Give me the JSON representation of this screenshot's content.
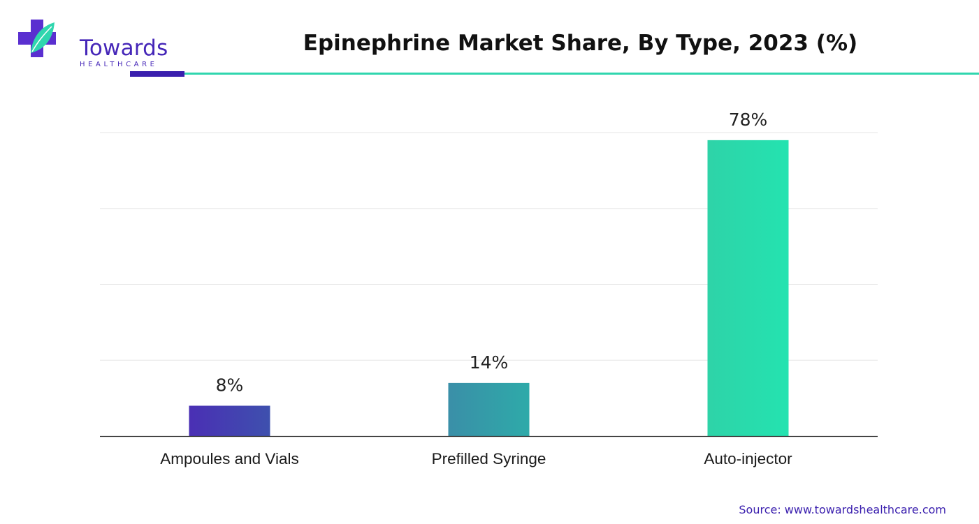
{
  "logo": {
    "name": "Towards",
    "subtitle": "HEALTHCARE",
    "icon": "medical-cross-leaf-icon"
  },
  "colors": {
    "brand_purple": "#4526b8",
    "brand_teal": "#2fd6ae",
    "grid": "#e6e6e6",
    "axis": "#333333"
  },
  "chart_data": {
    "type": "bar",
    "title": "Epinephrine Market Share, By Type, 2023 (%)",
    "xlabel": "",
    "ylabel": "",
    "categories": [
      "Ampoules and Vials",
      "Prefilled Syringe",
      "Auto-injector"
    ],
    "values": [
      8,
      14,
      78
    ],
    "data_labels": [
      "8%",
      "14%",
      "78%"
    ],
    "unit": "%",
    "ylim": [
      0,
      80
    ],
    "grid": true,
    "legend": "none",
    "bar_gradients": [
      [
        "#4a2fb4",
        "#3e50ae"
      ],
      [
        "#3a8fa8",
        "#2eaaa9"
      ],
      [
        "#2ed3a8",
        "#24e3b0"
      ]
    ]
  },
  "source": "Source: www.towardshealthcare.com"
}
